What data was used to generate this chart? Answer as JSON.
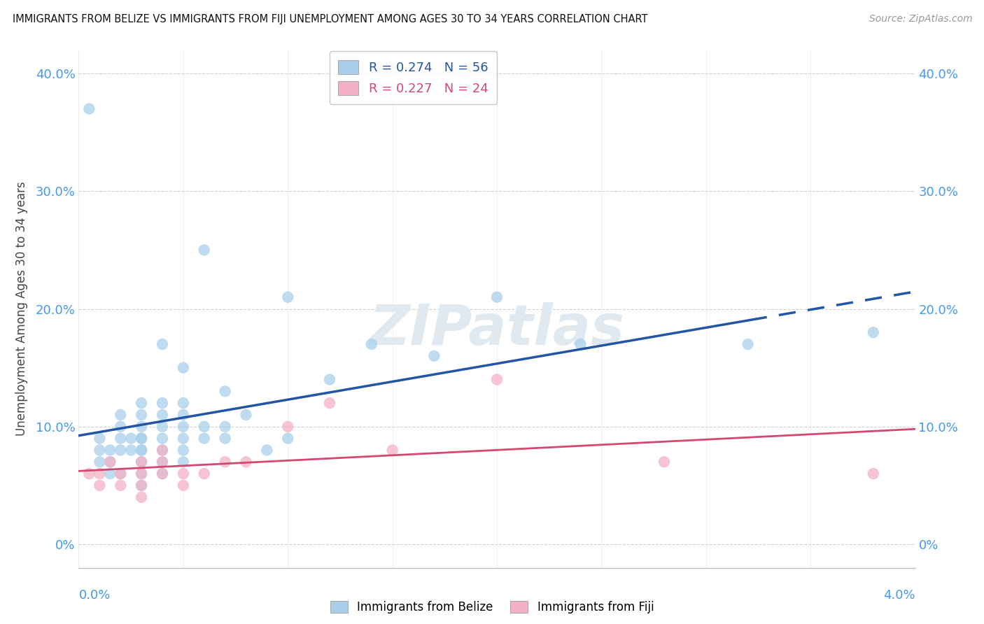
{
  "title": "IMMIGRANTS FROM BELIZE VS IMMIGRANTS FROM FIJI UNEMPLOYMENT AMONG AGES 30 TO 34 YEARS CORRELATION CHART",
  "source": "Source: ZipAtlas.com",
  "ylabel": "Unemployment Among Ages 30 to 34 years",
  "legend_label1": "Immigrants from Belize",
  "legend_label2": "Immigrants from Fiji",
  "R1": 0.274,
  "N1": 56,
  "R2": 0.227,
  "N2": 24,
  "color_belize": "#A8D0EA",
  "color_fiji": "#F4B0C5",
  "line_color_belize": "#2255A4",
  "line_color_fiji": "#D44870",
  "background_color": "#ffffff",
  "xlim": [
    0.0,
    0.04
  ],
  "ylim": [
    -0.02,
    0.42
  ],
  "ytick_vals": [
    0.0,
    0.1,
    0.2,
    0.3,
    0.4
  ],
  "ytick_labels": [
    "0%",
    "10.0%",
    "20.0%",
    "30.0%",
    "40.0%"
  ],
  "belize_x": [
    0.0005,
    0.001,
    0.001,
    0.001,
    0.0015,
    0.0015,
    0.0015,
    0.002,
    0.002,
    0.002,
    0.002,
    0.002,
    0.0025,
    0.0025,
    0.003,
    0.003,
    0.003,
    0.003,
    0.003,
    0.003,
    0.003,
    0.003,
    0.003,
    0.003,
    0.004,
    0.004,
    0.004,
    0.004,
    0.004,
    0.004,
    0.004,
    0.004,
    0.005,
    0.005,
    0.005,
    0.005,
    0.005,
    0.005,
    0.005,
    0.006,
    0.006,
    0.006,
    0.007,
    0.007,
    0.007,
    0.008,
    0.009,
    0.01,
    0.01,
    0.012,
    0.014,
    0.017,
    0.02,
    0.024,
    0.032,
    0.038
  ],
  "belize_y": [
    0.37,
    0.08,
    0.07,
    0.09,
    0.06,
    0.07,
    0.08,
    0.06,
    0.08,
    0.09,
    0.1,
    0.11,
    0.08,
    0.09,
    0.05,
    0.06,
    0.07,
    0.08,
    0.09,
    0.1,
    0.11,
    0.12,
    0.08,
    0.09,
    0.06,
    0.07,
    0.08,
    0.09,
    0.1,
    0.11,
    0.12,
    0.17,
    0.07,
    0.08,
    0.09,
    0.1,
    0.11,
    0.12,
    0.15,
    0.09,
    0.1,
    0.25,
    0.09,
    0.1,
    0.13,
    0.11,
    0.08,
    0.09,
    0.21,
    0.14,
    0.17,
    0.16,
    0.21,
    0.17,
    0.17,
    0.18
  ],
  "fiji_x": [
    0.0005,
    0.001,
    0.001,
    0.0015,
    0.002,
    0.002,
    0.003,
    0.003,
    0.003,
    0.003,
    0.004,
    0.004,
    0.004,
    0.005,
    0.005,
    0.006,
    0.007,
    0.008,
    0.01,
    0.012,
    0.015,
    0.02,
    0.028,
    0.038
  ],
  "fiji_y": [
    0.06,
    0.05,
    0.06,
    0.07,
    0.05,
    0.06,
    0.04,
    0.05,
    0.06,
    0.07,
    0.06,
    0.07,
    0.08,
    0.05,
    0.06,
    0.06,
    0.07,
    0.07,
    0.1,
    0.12,
    0.08,
    0.14,
    0.07,
    0.06
  ],
  "line_solid_end": 0.032,
  "watermark": "ZIPatlas",
  "watermark_color": "#e0e8f0"
}
